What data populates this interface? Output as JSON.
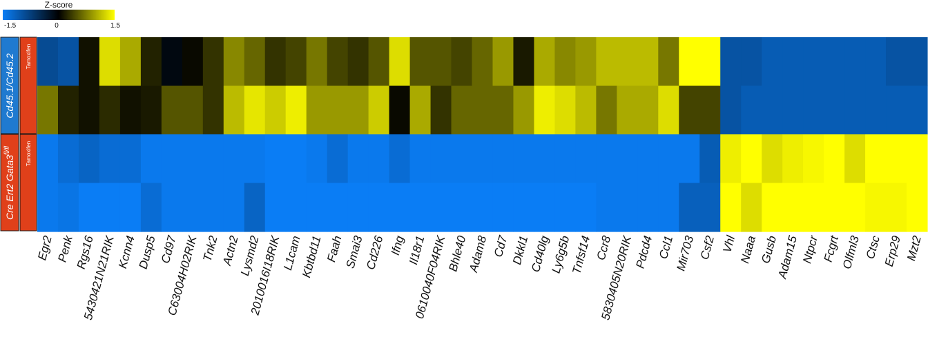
{
  "chart_data": {
    "type": "heatmap",
    "colorscale": {
      "title": "Z-score",
      "min": -1.5,
      "mid": 0,
      "max": 1.5,
      "tick_labels": [
        "-1.5",
        "0",
        "1.5"
      ],
      "colors": [
        "#0a7df5",
        "#000000",
        "#ffff00"
      ]
    },
    "groups": [
      {
        "label": "Cd45.1/Cd45.2",
        "color": "#1f7ad0",
        "condition": "Tamoxifen",
        "condition_color": "#e0401a",
        "rows": [
          0,
          1
        ]
      },
      {
        "label": "Cre Ert2 Gata3",
        "label_sup": "fl/fl",
        "color": "#e0401a",
        "condition": "Tamoxifen",
        "condition_color": "#e0401a",
        "rows": [
          2,
          3
        ]
      }
    ],
    "genes": [
      "Egr2",
      "Penk",
      "Rgs16",
      "5430421N21RIK",
      "Kcnn4",
      "Dusp5",
      "Cd97",
      "C63004H02RIK",
      "Tnk2",
      "Actn2",
      "Lysmd2",
      "2010016I18RIK",
      "L1cam",
      "Kbtbd11",
      "Faah",
      "Smai3",
      "Cd226",
      "Ifng",
      "Il18r1",
      "0610040F04RIK",
      "Bhle40",
      "Adam8",
      "Cd7",
      "Dkkl1",
      "Cd40lg",
      "Ly6g5b",
      "Tnfsf14",
      "Ccr8",
      "5830405N20RIK",
      "Pdcd4",
      "Ccl1",
      "Mir703",
      "Csf2",
      "Vhl",
      "Naaa",
      "Gusb",
      "Adam15",
      "Ntpcr",
      "Fcgrt",
      "Olfml3",
      "Ctsc",
      "Erp29",
      "Mzt2"
    ],
    "values": [
      [
        -0.9,
        -1.0,
        0.1,
        1.3,
        1.0,
        0.2,
        -0.1,
        0.05,
        0.3,
        0.8,
        0.6,
        0.3,
        0.4,
        0.7,
        0.4,
        0.3,
        0.5,
        1.3,
        0.5,
        0.5,
        0.4,
        0.6,
        0.9,
        0.15,
        1.0,
        0.8,
        0.9,
        1.1,
        1.1,
        1.1,
        0.7,
        1.5,
        1.5,
        -1.0,
        -1.0,
        -1.1,
        -1.1,
        -1.1,
        -1.1,
        -1.1,
        -1.1,
        -1.0,
        -1.0
      ],
      [
        0.7,
        0.2,
        0.1,
        0.25,
        0.1,
        0.15,
        0.5,
        0.5,
        0.3,
        1.1,
        1.35,
        1.2,
        1.4,
        0.9,
        0.9,
        0.9,
        1.2,
        0.05,
        1.0,
        0.3,
        0.6,
        0.6,
        0.6,
        0.9,
        1.4,
        1.3,
        1.1,
        0.7,
        1.0,
        1.0,
        1.3,
        0.4,
        0.4,
        -1.0,
        -1.1,
        -1.1,
        -1.1,
        -1.1,
        -1.1,
        -1.1,
        -1.1,
        -1.1,
        -1.1
      ],
      [
        -1.45,
        -1.3,
        -1.2,
        -1.3,
        -1.3,
        -1.45,
        -1.45,
        -1.45,
        -1.45,
        -1.45,
        -1.45,
        -1.5,
        -1.5,
        -1.45,
        -1.3,
        -1.45,
        -1.45,
        -1.3,
        -1.45,
        -1.45,
        -1.45,
        -1.45,
        -1.45,
        -1.45,
        -1.45,
        -1.45,
        -1.45,
        -1.45,
        -1.45,
        -1.45,
        -1.45,
        -1.45,
        -1.1,
        1.4,
        1.5,
        1.3,
        1.4,
        1.45,
        1.5,
        1.3,
        1.5,
        1.5,
        1.5
      ],
      [
        -1.45,
        -1.4,
        -1.5,
        -1.5,
        -1.5,
        -1.3,
        -1.45,
        -1.45,
        -1.45,
        -1.45,
        -1.2,
        -1.5,
        -1.5,
        -1.5,
        -1.5,
        -1.5,
        -1.5,
        -1.5,
        -1.5,
        -1.5,
        -1.5,
        -1.5,
        -1.5,
        -1.5,
        -1.5,
        -1.5,
        -1.5,
        -1.45,
        -1.45,
        -1.45,
        -1.45,
        -1.15,
        -1.15,
        1.5,
        1.3,
        1.5,
        1.5,
        1.5,
        1.5,
        1.5,
        1.45,
        1.45,
        1.5
      ]
    ]
  }
}
